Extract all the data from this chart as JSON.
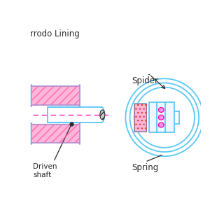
{
  "title": "rrodo Lining",
  "labels": {
    "driven_shaft": "Driven\nshaft",
    "spider": "Spider",
    "spring": "Spring"
  },
  "colors": {
    "blue": "#5BC8F5",
    "pink_bg": "#FFB6D9",
    "pink_hatch": "#FF69B4",
    "red_hatch": "#FF6666",
    "magenta_dash": "#FF00BB",
    "spring_pink": "#FF66CC",
    "dark": "#2A2A2A",
    "bg": "#FFFFFF"
  },
  "fig_width": 3.2,
  "fig_height": 3.2,
  "dpi": 100
}
